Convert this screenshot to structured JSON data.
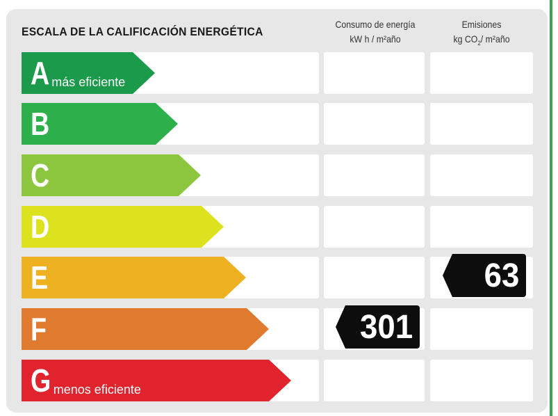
{
  "title": "ESCALA DE LA CALIFICACIÓN ENERGÉTICA",
  "columns": {
    "consumo": {
      "line1": "Consumo de energía",
      "line2": "kW h / m²año"
    },
    "emisiones": {
      "line1": "Emisiones",
      "line2_pre": "kg CO",
      "line2_sub": "2",
      "line2_post": "/ m²año"
    }
  },
  "ratings": [
    {
      "letter": "A",
      "label": "más eficiente",
      "color": "#1b9a4b"
    },
    {
      "letter": "B",
      "label": "",
      "color": "#2db04b"
    },
    {
      "letter": "C",
      "label": "",
      "color": "#8cc63f"
    },
    {
      "letter": "D",
      "label": "",
      "color": "#dde21f"
    },
    {
      "letter": "E",
      "label": "",
      "color": "#eeb121"
    },
    {
      "letter": "F",
      "label": "",
      "color": "#e07a2f"
    },
    {
      "letter": "G",
      "label": "menos eficiente",
      "color": "#e0232d"
    }
  ],
  "values": {
    "consumo": {
      "rating": "F",
      "value": "301"
    },
    "emisiones": {
      "rating": "E",
      "value": "63"
    }
  }
}
